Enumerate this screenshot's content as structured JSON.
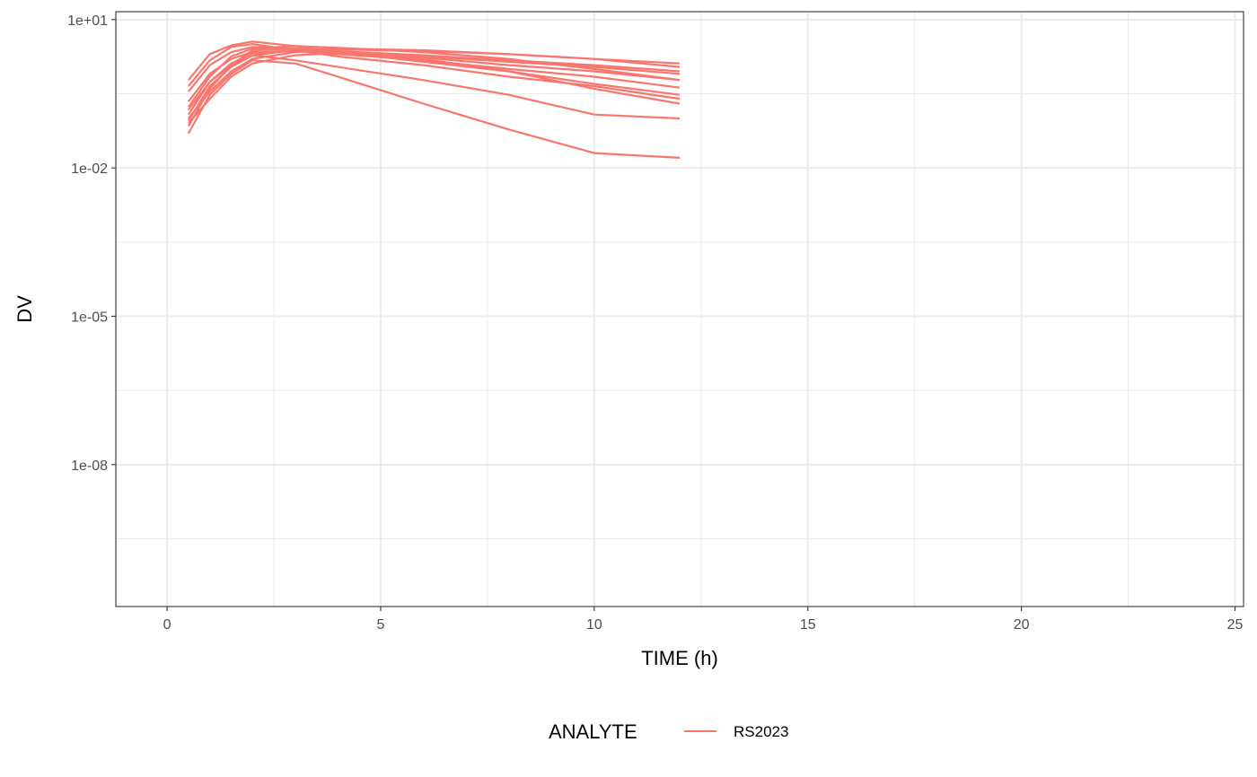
{
  "chart_data": {
    "type": "line",
    "xlabel": "TIME (h)",
    "ylabel": "DV",
    "x_scale": "linear",
    "y_scale": "log10",
    "xlim": [
      -1.2,
      25.2
    ],
    "ylim_log10": [
      -10.87,
      1.16
    ],
    "x_ticks": [
      {
        "value": 0,
        "label": "0"
      },
      {
        "value": 5,
        "label": "5"
      },
      {
        "value": 10,
        "label": "10"
      },
      {
        "value": 15,
        "label": "15"
      },
      {
        "value": 20,
        "label": "20"
      },
      {
        "value": 25,
        "label": "25"
      }
    ],
    "y_ticks": [
      {
        "log10": 1,
        "label": "1e+01"
      },
      {
        "log10": -2,
        "label": "1e-02"
      },
      {
        "log10": -5,
        "label": "1e-05"
      },
      {
        "log10": -8,
        "label": "1e-08"
      }
    ],
    "grid": true,
    "legend": {
      "position": "bottom",
      "title": "ANALYTE",
      "entries": [
        {
          "label": "RS2023",
          "color": "#F8766D"
        }
      ]
    },
    "line_color": "#F8766D",
    "x": [
      0.5,
      1,
      1.5,
      2,
      3,
      4,
      6,
      8,
      10,
      12
    ],
    "series": [
      {
        "values": [
          0.45,
          1.5,
          2.8,
          3.2,
          2.4,
          1.8,
          1.2,
          0.7,
          0.45,
          0.25
        ]
      },
      {
        "values": [
          0.22,
          0.8,
          1.6,
          2.2,
          2.3,
          2.0,
          1.5,
          1.0,
          0.7,
          0.42
        ]
      },
      {
        "values": [
          0.12,
          0.55,
          1.3,
          2.1,
          2.4,
          2.2,
          1.7,
          1.2,
          0.9,
          0.6
        ]
      },
      {
        "values": [
          0.35,
          1.2,
          2.2,
          2.8,
          2.6,
          2.3,
          1.9,
          1.5,
          1.2,
          0.9
        ]
      },
      {
        "values": [
          0.08,
          0.25,
          0.7,
          1.3,
          1.9,
          2.1,
          1.8,
          1.4,
          1.1,
          0.8
        ]
      },
      {
        "values": [
          0.6,
          2.0,
          3.0,
          3.6,
          2.9,
          2.2,
          1.4,
          0.9,
          0.5,
          0.3
        ]
      },
      {
        "values": [
          0.17,
          0.7,
          1.8,
          2.6,
          2.9,
          2.7,
          2.2,
          1.6,
          1.0,
          0.6
        ]
      },
      {
        "values": [
          0.1,
          0.35,
          0.9,
          1.6,
          2.2,
          2.5,
          2.3,
          2.0,
          1.6,
          1.3
        ]
      },
      {
        "values": [
          0.05,
          0.3,
          0.8,
          1.5,
          1.3,
          0.7,
          0.2,
          0.06,
          0.02,
          0.016
        ]
      },
      {
        "values": [
          0.15,
          0.55,
          1.2,
          1.9,
          1.5,
          1.1,
          0.6,
          0.3,
          0.12,
          0.1
        ]
      },
      {
        "values": [
          0.09,
          0.45,
          1.1,
          1.9,
          2.4,
          2.6,
          2.4,
          2.0,
          1.6,
          1.1
        ]
      },
      {
        "values": [
          0.07,
          0.4,
          1.2,
          2.4,
          2.6,
          2.3,
          1.6,
          0.9,
          0.4,
          0.2
        ]
      }
    ]
  }
}
